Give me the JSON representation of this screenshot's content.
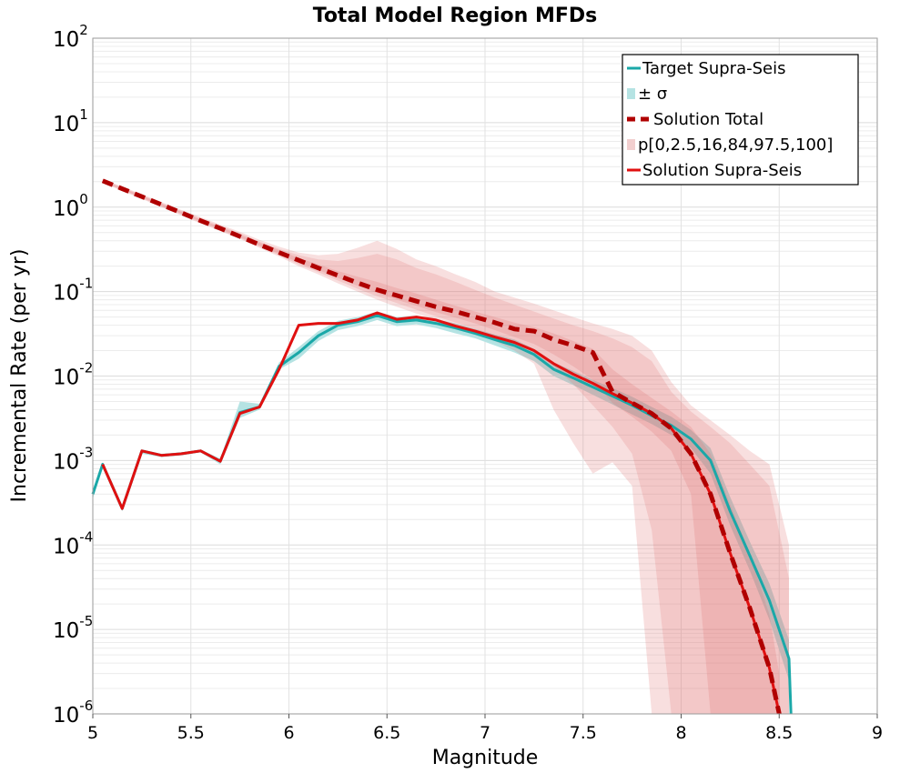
{
  "chart_data": {
    "type": "line",
    "title": "Total Model Region MFDs",
    "xlabel": "Magnitude",
    "ylabel": "Incremental Rate (per yr)",
    "xlim": [
      5,
      9
    ],
    "ylim": [
      1e-06,
      100
    ],
    "yscale": "log",
    "grid": true,
    "legend_position": "top-right",
    "x_ticks": [
      "5",
      "5.5",
      "6",
      "6.5",
      "7",
      "7.5",
      "8",
      "8.5",
      "9"
    ],
    "x_tick_values": [
      5,
      5.5,
      6,
      6.5,
      7,
      7.5,
      8,
      8.5,
      9
    ],
    "y_ticks": [
      {
        "value": 100,
        "base": "10",
        "exp": "2"
      },
      {
        "value": 10,
        "base": "10",
        "exp": "1"
      },
      {
        "value": 1,
        "base": "10",
        "exp": "0"
      },
      {
        "value": 0.1,
        "base": "10",
        "exp": "-1"
      },
      {
        "value": 0.01,
        "base": "10",
        "exp": "-2"
      },
      {
        "value": 0.001,
        "base": "10",
        "exp": "-3"
      },
      {
        "value": 0.0001,
        "base": "10",
        "exp": "-4"
      },
      {
        "value": 1e-05,
        "base": "10",
        "exp": "-5"
      },
      {
        "value": 1e-06,
        "base": "10",
        "exp": "-6"
      }
    ],
    "legend": [
      {
        "label": "Target Supra-Seis",
        "style": "line",
        "color": "#1aa8a8"
      },
      {
        "label": "± σ",
        "style": "band",
        "color": "#b5e3e3"
      },
      {
        "label": "Solution Total",
        "style": "dashed",
        "color": "#b00000"
      },
      {
        "label": "p[0,2.5,16,84,97.5,100]",
        "style": "band",
        "color": "#f2cfcf"
      },
      {
        "label": "Solution Supra-Seis",
        "style": "line",
        "color": "#e01010"
      }
    ],
    "series": [
      {
        "name": "Target Supra-Seis",
        "color": "#1aa8a8",
        "x": [
          5.0,
          5.05,
          5.15,
          5.25,
          5.35,
          5.45,
          5.55,
          5.65,
          5.75,
          5.85,
          5.95,
          6.05,
          6.15,
          6.25,
          6.35,
          6.45,
          6.55,
          6.65,
          6.75,
          6.85,
          6.95,
          7.05,
          7.15,
          7.25,
          7.35,
          7.45,
          7.55,
          7.65,
          7.75,
          7.85,
          7.95,
          8.05,
          8.15,
          8.25,
          8.35,
          8.45,
          8.55,
          8.56
        ],
        "y": [
          0.0004,
          0.0009,
          0.00027,
          0.0013,
          0.00115,
          0.0012,
          0.0013,
          0.00098,
          0.0037,
          0.0043,
          0.013,
          0.019,
          0.03,
          0.04,
          0.044,
          0.052,
          0.044,
          0.046,
          0.042,
          0.037,
          0.032,
          0.027,
          0.023,
          0.018,
          0.012,
          0.0095,
          0.0074,
          0.0058,
          0.0045,
          0.0034,
          0.0026,
          0.0018,
          0.001,
          0.00025,
          7.5e-05,
          2.2e-05,
          4.5e-06,
          1e-06
        ]
      },
      {
        "name": "Solution Supra-Seis",
        "color": "#e01010",
        "x": [
          5.05,
          5.15,
          5.25,
          5.35,
          5.45,
          5.55,
          5.65,
          5.75,
          5.85,
          5.95,
          6.05,
          6.15,
          6.25,
          6.35,
          6.45,
          6.55,
          6.65,
          6.75,
          6.85,
          6.95,
          7.05,
          7.15,
          7.25,
          7.35,
          7.45,
          7.55,
          7.65,
          7.75,
          7.85,
          7.95,
          8.05,
          8.15,
          8.25,
          8.35,
          8.45,
          8.5
        ],
        "y": [
          0.0009,
          0.00027,
          0.0013,
          0.00115,
          0.0012,
          0.0013,
          0.00098,
          0.0036,
          0.0043,
          0.012,
          0.04,
          0.042,
          0.042,
          0.046,
          0.056,
          0.047,
          0.05,
          0.046,
          0.039,
          0.034,
          0.029,
          0.025,
          0.02,
          0.014,
          0.0105,
          0.0082,
          0.0062,
          0.0048,
          0.0036,
          0.0024,
          0.0012,
          0.0004,
          8e-05,
          1.8e-05,
          3.5e-06,
          1e-06
        ]
      },
      {
        "name": "Solution Total",
        "color": "#b00000",
        "dashed": true,
        "x": [
          5.05,
          5.15,
          5.25,
          5.35,
          5.45,
          5.55,
          5.65,
          5.75,
          5.85,
          5.95,
          6.05,
          6.15,
          6.25,
          6.35,
          6.45,
          6.55,
          6.65,
          6.75,
          6.85,
          6.95,
          7.05,
          7.15,
          7.25,
          7.35,
          7.45,
          7.55,
          7.65,
          7.75,
          7.85,
          7.95,
          8.05,
          8.15,
          8.25,
          8.35,
          8.45,
          8.5
        ],
        "y": [
          2.05,
          1.65,
          1.33,
          1.07,
          0.86,
          0.69,
          0.56,
          0.45,
          0.36,
          0.29,
          0.235,
          0.19,
          0.155,
          0.127,
          0.105,
          0.09,
          0.077,
          0.066,
          0.058,
          0.05,
          0.043,
          0.036,
          0.034,
          0.027,
          0.023,
          0.019,
          0.0065,
          0.0048,
          0.0036,
          0.0024,
          0.0012,
          0.0004,
          8e-05,
          1.8e-05,
          3.5e-06,
          1e-06
        ]
      }
    ],
    "bands": [
      {
        "name": "± σ",
        "color": "#b5e3e3",
        "x": [
          5.0,
          5.05,
          5.15,
          5.25,
          5.35,
          5.45,
          5.55,
          5.65,
          5.75,
          5.85,
          5.95,
          6.05,
          6.15,
          6.25,
          6.35,
          6.45,
          6.55,
          6.65,
          6.75,
          6.85,
          6.95,
          7.05,
          7.15,
          7.25,
          7.35,
          7.45,
          7.55,
          7.65,
          7.75,
          7.85,
          7.95,
          8.05,
          8.15,
          8.25,
          8.35,
          8.45,
          8.55
        ],
        "lower": [
          0.00035,
          0.00085,
          0.00025,
          0.0012,
          0.0011,
          0.00115,
          0.00125,
          0.0009,
          0.0032,
          0.004,
          0.012,
          0.016,
          0.026,
          0.035,
          0.039,
          0.046,
          0.039,
          0.041,
          0.037,
          0.032,
          0.028,
          0.023,
          0.019,
          0.015,
          0.01,
          0.0078,
          0.006,
          0.0046,
          0.0035,
          0.0027,
          0.002,
          0.0014,
          0.0007,
          0.00017,
          5e-05,
          1.3e-05,
          2.5e-06
        ],
        "upper": [
          0.00045,
          0.00095,
          0.00029,
          0.00135,
          0.0012,
          0.00125,
          0.00135,
          0.00105,
          0.005,
          0.0047,
          0.0145,
          0.022,
          0.034,
          0.045,
          0.05,
          0.058,
          0.05,
          0.052,
          0.047,
          0.042,
          0.036,
          0.031,
          0.027,
          0.021,
          0.0145,
          0.0115,
          0.009,
          0.0072,
          0.0057,
          0.0043,
          0.0033,
          0.0023,
          0.0014,
          0.00037,
          0.00011,
          3.5e-05,
          7.5e-06
        ]
      },
      {
        "name": "p[0,100]",
        "color": "rgba(225,110,110,0.22)",
        "x": [
          5.05,
          5.15,
          5.25,
          5.35,
          5.45,
          5.55,
          5.65,
          5.75,
          5.85,
          5.95,
          6.05,
          6.15,
          6.25,
          6.35,
          6.45,
          6.55,
          6.65,
          6.75,
          6.85,
          6.95,
          7.05,
          7.15,
          7.25,
          7.35,
          7.45,
          7.55,
          7.65,
          7.75,
          7.85,
          7.95,
          8.05,
          8.15,
          8.25,
          8.35,
          8.45,
          8.55
        ],
        "lower": [
          1.95,
          1.55,
          1.25,
          1.0,
          0.8,
          0.64,
          0.52,
          0.42,
          0.33,
          0.26,
          0.2,
          0.16,
          0.125,
          0.1,
          0.08,
          0.066,
          0.055,
          0.046,
          0.039,
          0.032,
          0.026,
          0.02,
          0.014,
          0.004,
          0.0016,
          0.0007,
          0.00095,
          0.0005,
          1e-06,
          1e-06,
          1e-06,
          1e-06,
          1e-06,
          1e-06,
          1e-06,
          1e-06
        ],
        "upper": [
          2.15,
          1.75,
          1.42,
          1.15,
          0.93,
          0.76,
          0.62,
          0.51,
          0.41,
          0.34,
          0.29,
          0.27,
          0.28,
          0.33,
          0.4,
          0.32,
          0.24,
          0.2,
          0.16,
          0.13,
          0.1,
          0.085,
          0.072,
          0.06,
          0.05,
          0.042,
          0.036,
          0.03,
          0.02,
          0.0085,
          0.0045,
          0.003,
          0.002,
          0.0013,
          0.0009,
          0.0001
        ]
      },
      {
        "name": "p[2.5,97.5]",
        "color": "rgba(225,110,110,0.20)",
        "x": [
          5.05,
          5.15,
          5.25,
          5.35,
          5.45,
          5.55,
          5.65,
          5.75,
          5.85,
          5.95,
          6.05,
          6.15,
          6.25,
          6.35,
          6.45,
          6.55,
          6.65,
          6.75,
          6.85,
          6.95,
          7.05,
          7.15,
          7.25,
          7.35,
          7.45,
          7.55,
          7.65,
          7.75,
          7.85,
          7.95,
          8.05,
          8.15,
          8.25,
          8.35,
          8.45,
          8.55
        ],
        "lower": [
          1.97,
          1.58,
          1.27,
          1.02,
          0.82,
          0.66,
          0.53,
          0.43,
          0.34,
          0.27,
          0.21,
          0.17,
          0.135,
          0.108,
          0.088,
          0.073,
          0.061,
          0.051,
          0.043,
          0.036,
          0.03,
          0.024,
          0.019,
          0.013,
          0.008,
          0.0045,
          0.0025,
          0.0012,
          0.00015,
          1e-06,
          1e-06,
          1e-06,
          1e-06,
          1e-06,
          1e-06,
          1e-06
        ],
        "upper": [
          2.12,
          1.72,
          1.39,
          1.12,
          0.91,
          0.73,
          0.6,
          0.49,
          0.39,
          0.32,
          0.27,
          0.24,
          0.23,
          0.25,
          0.28,
          0.24,
          0.19,
          0.16,
          0.13,
          0.105,
          0.085,
          0.07,
          0.058,
          0.048,
          0.04,
          0.034,
          0.028,
          0.022,
          0.015,
          0.0065,
          0.0038,
          0.0025,
          0.0016,
          0.0009,
          0.0005,
          4e-05
        ]
      },
      {
        "name": "p[16,84]",
        "color": "rgba(225,110,110,0.22)",
        "x": [
          5.05,
          5.15,
          5.25,
          5.35,
          5.45,
          5.55,
          5.65,
          5.75,
          5.85,
          5.95,
          6.05,
          6.15,
          6.25,
          6.35,
          6.45,
          6.55,
          6.65,
          6.75,
          6.85,
          6.95,
          7.05,
          7.15,
          7.25,
          7.35,
          7.45,
          7.55,
          7.65,
          7.75,
          7.85,
          7.95,
          8.05,
          8.15,
          8.25,
          8.35,
          8.45,
          8.5
        ],
        "lower": [
          2.0,
          1.61,
          1.3,
          1.04,
          0.84,
          0.68,
          0.55,
          0.44,
          0.35,
          0.28,
          0.22,
          0.18,
          0.145,
          0.117,
          0.096,
          0.08,
          0.068,
          0.057,
          0.049,
          0.042,
          0.035,
          0.029,
          0.024,
          0.018,
          0.013,
          0.009,
          0.0048,
          0.0033,
          0.0022,
          0.0013,
          0.0004,
          1e-06,
          1e-06,
          1e-06,
          1e-06,
          1e-06
        ],
        "upper": [
          2.08,
          1.68,
          1.36,
          1.1,
          0.88,
          0.71,
          0.58,
          0.47,
          0.38,
          0.31,
          0.25,
          0.21,
          0.175,
          0.15,
          0.13,
          0.11,
          0.095,
          0.08,
          0.068,
          0.058,
          0.05,
          0.043,
          0.038,
          0.032,
          0.026,
          0.021,
          0.012,
          0.008,
          0.0055,
          0.0038,
          0.0025,
          0.0012,
          0.0003,
          8e-05,
          1.5e-05,
          3e-06
        ]
      }
    ]
  }
}
